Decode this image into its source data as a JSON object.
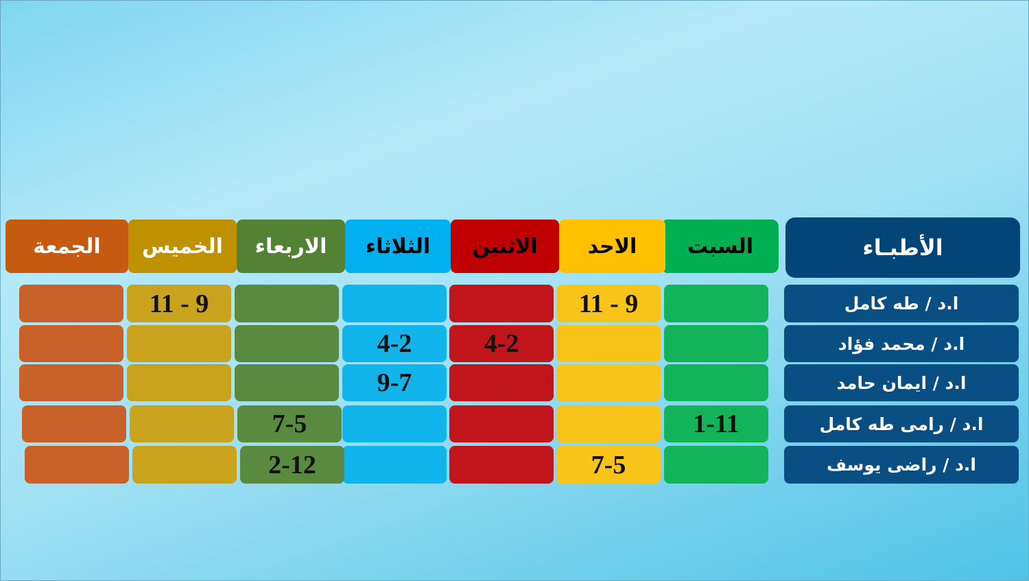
{
  "doctors_header": "الأطبـاء",
  "days": [
    {
      "label": "السبت",
      "color": "#00b050",
      "cell_color": "#13b35a",
      "text_color": "#000000"
    },
    {
      "label": "الاحد",
      "color": "#ffc000",
      "cell_color": "#f8c419",
      "text_color": "#000000"
    },
    {
      "label": "الاثنين",
      "color": "#c00000",
      "cell_color": "#c0151a",
      "text_color": "#000000"
    },
    {
      "label": "الثلاثاء",
      "color": "#00b0f0",
      "cell_color": "#12b4ec",
      "text_color": "#000000"
    },
    {
      "label": "الاربعاء",
      "color": "#548235",
      "cell_color": "#5a8a40",
      "text_color": "#ffffff"
    },
    {
      "label": "الخميس",
      "color": "#bf9000",
      "cell_color": "#c9a21e",
      "text_color": "#ffffff"
    },
    {
      "label": "الجمعة",
      "color": "#c55a11",
      "cell_color": "#c8602a",
      "text_color": "#ffffff"
    }
  ],
  "rows": [
    {
      "doctor": "ا.د / طه كامل",
      "times": [
        "",
        "11 - 9",
        "",
        "",
        "",
        "11 - 9",
        ""
      ]
    },
    {
      "doctor": "ا.د / محمد فؤاد",
      "times": [
        "",
        "",
        "4-2",
        "4-2",
        "",
        "",
        ""
      ]
    },
    {
      "doctor": "ا.د / ايمان حامد",
      "times": [
        "",
        "",
        "",
        "9-7",
        "",
        "",
        ""
      ]
    },
    {
      "doctor": "ا.د / رامى طه كامل",
      "times": [
        "1-11",
        "",
        "",
        "",
        "7-5",
        "",
        ""
      ]
    },
    {
      "doctor": "ا.د / راضى يوسف",
      "times": [
        "",
        "7-5",
        "",
        "",
        "2-12",
        "",
        ""
      ]
    }
  ]
}
